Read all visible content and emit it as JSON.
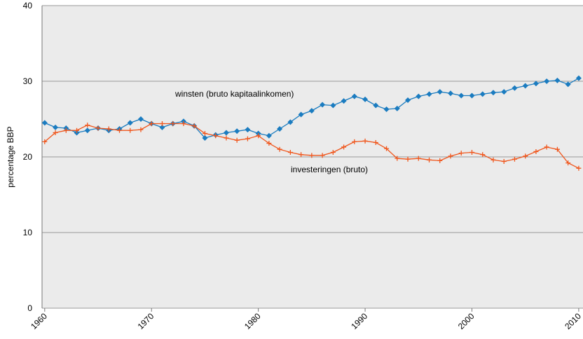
{
  "chart_data": {
    "type": "line",
    "y_label": "percentage BBP",
    "x": [
      1960,
      1961,
      1962,
      1963,
      1964,
      1965,
      1966,
      1967,
      1968,
      1969,
      1970,
      1971,
      1972,
      1973,
      1974,
      1975,
      1976,
      1977,
      1978,
      1979,
      1980,
      1981,
      1982,
      1983,
      1984,
      1985,
      1986,
      1987,
      1988,
      1989,
      1990,
      1991,
      1992,
      1993,
      1994,
      1995,
      1996,
      1997,
      1998,
      1999,
      2000,
      2001,
      2002,
      2003,
      2004,
      2005,
      2006,
      2007,
      2008,
      2009,
      2010
    ],
    "series": [
      {
        "name": "winsten (bruto kapitaalinkomen)",
        "color": "#1b7cc0",
        "marker": "diamond",
        "values": [
          24.5,
          23.9,
          23.8,
          23.2,
          23.5,
          23.8,
          23.5,
          23.7,
          24.5,
          25.0,
          24.4,
          23.9,
          24.4,
          24.7,
          24.1,
          22.5,
          22.9,
          23.2,
          23.4,
          23.6,
          23.1,
          22.8,
          23.7,
          24.6,
          25.6,
          26.1,
          26.9,
          26.8,
          27.4,
          28.0,
          27.6,
          26.8,
          26.3,
          26.4,
          27.5,
          28.0,
          28.3,
          28.6,
          28.4,
          28.1,
          28.1,
          28.3,
          28.5,
          28.6,
          29.1,
          29.4,
          29.7,
          30.0,
          30.1,
          29.6,
          30.4
        ]
      },
      {
        "name": "investeringen (bruto)",
        "color": "#f0561c",
        "marker": "plus",
        "values": [
          22.0,
          23.2,
          23.5,
          23.5,
          24.2,
          23.8,
          23.7,
          23.5,
          23.5,
          23.6,
          24.4,
          24.4,
          24.4,
          24.4,
          24.1,
          23.1,
          22.8,
          22.5,
          22.2,
          22.4,
          22.8,
          21.8,
          21.0,
          20.6,
          20.3,
          20.2,
          20.2,
          20.6,
          21.3,
          22.0,
          22.1,
          21.9,
          21.1,
          19.8,
          19.7,
          19.8,
          19.6,
          19.5,
          20.1,
          20.5,
          20.6,
          20.3,
          19.6,
          19.4,
          19.7,
          20.1,
          20.7,
          21.3,
          21.0,
          19.2,
          18.5
        ]
      }
    ],
    "xlim": [
      1959.75,
      2010.4
    ],
    "xticks": [
      1960,
      1970,
      1980,
      1990,
      2000,
      2010
    ],
    "ylim": [
      0,
      40
    ],
    "yticks": [
      0,
      10,
      20,
      30,
      40
    ],
    "grid": true
  }
}
